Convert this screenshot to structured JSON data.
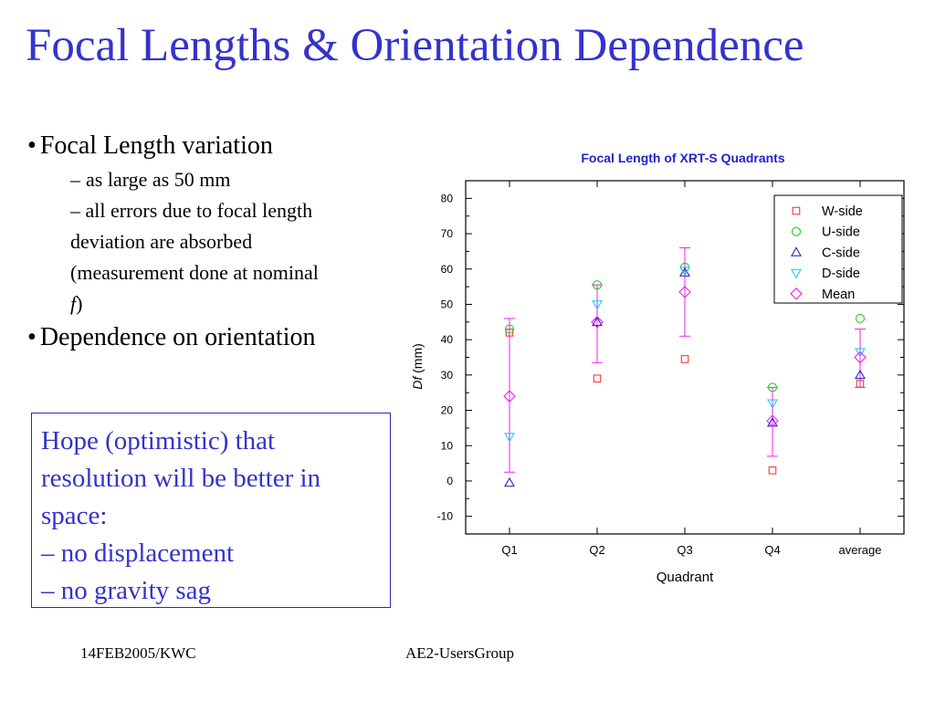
{
  "slide": {
    "title": "Focal Lengths & Orientation Dependence",
    "bullet1": {
      "marker": "•",
      "text": "Focal Length variation",
      "subs": {
        "s1_dash": "–",
        "s1": "as large as 50 mm",
        "s2": "– all errors due to focal length",
        "s3": "deviation are absorbed",
        "s4": "(measurement done at nominal",
        "s5_italic": "f",
        "s5_rest": ")"
      }
    },
    "bullet2": {
      "marker": "•",
      "text": "Dependence on orientation"
    },
    "hope_box": {
      "line1": "Hope (optimistic) that",
      "line2": "resolution will be better in",
      "line3": "space:",
      "line4": "– no displacement",
      "line5": "– no gravity sag"
    },
    "footer": {
      "left": "14FEB2005/KWC",
      "center": "AE2-UsersGroup"
    }
  },
  "chart_data": {
    "type": "scatter",
    "title": "Focal Length of XRT-S Quadrants",
    "xlabel": "Quadrant",
    "ylabel_italic": "Df",
    "ylabel_rest": " (mm)",
    "categories": [
      "Q1",
      "Q2",
      "Q3",
      "Q4",
      "average"
    ],
    "ylim": [
      -15,
      85
    ],
    "yticks": [
      -10,
      0,
      10,
      20,
      30,
      40,
      50,
      60,
      70,
      80
    ],
    "legend_position": "top-right",
    "series": [
      {
        "name": "W-side",
        "marker": "square",
        "color": "#ff3333",
        "values": [
          42,
          29,
          34.5,
          3,
          27.5
        ]
      },
      {
        "name": "U-side",
        "marker": "circle",
        "color": "#22cc22",
        "values": [
          43,
          55.5,
          60.5,
          26.5,
          46
        ]
      },
      {
        "name": "C-side",
        "marker": "triangle-up",
        "color": "#2222cc",
        "values": [
          -0.5,
          45,
          59,
          16.5,
          30
        ]
      },
      {
        "name": "D-side",
        "marker": "triangle-down",
        "color": "#22ccee",
        "values": [
          12.5,
          50,
          59.5,
          22,
          36.5
        ]
      },
      {
        "name": "Mean",
        "marker": "diamond",
        "color": "#ee22ee",
        "values": [
          24,
          45,
          53.5,
          17,
          35
        ]
      }
    ],
    "error_bars": {
      "series": "Mean",
      "color": "#ee22ee",
      "low": [
        2.5,
        33.5,
        41,
        7,
        26.5
      ],
      "high": [
        46,
        55.5,
        66,
        26.5,
        43
      ]
    },
    "colors": {
      "title": "#2222cc",
      "axis": "#000000"
    }
  }
}
